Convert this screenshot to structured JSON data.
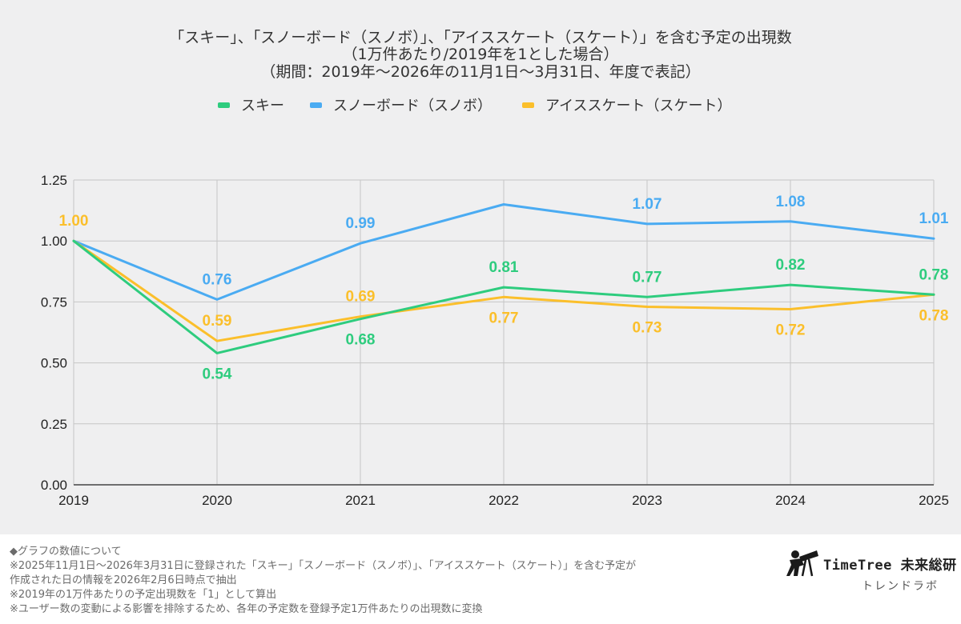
{
  "title": {
    "line1": "「スキー」、「スノーボード（スノボ）」、「アイススケート（スケート）」を含む予定の出現数",
    "line2": "（1万件あたり/2019年を1とした場合）",
    "line3": "（期間：2019年〜2026年の11月1日〜3月31日、年度で表記）"
  },
  "chart_data": {
    "type": "line",
    "categories": [
      "2019",
      "2020",
      "2021",
      "2022",
      "2023",
      "2024",
      "2025"
    ],
    "ylim": [
      0,
      1.25
    ],
    "yticks": [
      "0.00",
      "0.25",
      "0.50",
      "0.75",
      "1.00",
      "1.25"
    ],
    "grid": true,
    "legend_position": "top",
    "series": [
      {
        "name": "スキー",
        "color": "#2ecc7e",
        "values": [
          1.0,
          0.54,
          0.68,
          0.81,
          0.77,
          0.82,
          0.78
        ],
        "labels": [
          "",
          "0.54",
          "0.68",
          "0.81",
          "0.77",
          "0.82",
          "0.78"
        ],
        "label_pos": [
          "",
          "below",
          "below",
          "above",
          "above",
          "above",
          "above"
        ]
      },
      {
        "name": "スノーボード（スノボ）",
        "color": "#4aabf2",
        "values": [
          1.0,
          0.76,
          0.99,
          1.15,
          1.07,
          1.08,
          1.01
        ],
        "labels": [
          "",
          "0.76",
          "0.99",
          "",
          "1.07",
          "1.08",
          "1.01"
        ],
        "label_pos": [
          "",
          "above",
          "above",
          "",
          "above",
          "above",
          "above"
        ]
      },
      {
        "name": "アイススケート（スケート）",
        "color": "#fbbf2b",
        "values": [
          1.0,
          0.59,
          0.69,
          0.77,
          0.73,
          0.72,
          0.78
        ],
        "labels": [
          "1.00",
          "0.59",
          "0.69",
          "0.77",
          "0.73",
          "0.72",
          "0.78"
        ],
        "label_pos": [
          "above",
          "above",
          "above",
          "below",
          "below",
          "below",
          "below"
        ]
      }
    ]
  },
  "footer": {
    "notes": [
      "◆グラフの数値について",
      "※2025年11月1日〜2026年3月31日に登録された「スキー」「スノーボード（スノボ）」、「アイススケート（スケート）」を含む予定が",
      "作成された日の情報を2026年2月6日時点で抽出",
      "※2019年の1万件あたりの予定出現数を「1」として算出",
      "※ユーザー数の変動による影響を排除するため、各年の予定数を登録予定1万件あたりの出現数に変換"
    ]
  },
  "brand": {
    "name": "TimeTree 未来総研",
    "sub": "トレンドラボ",
    "icon": "telescope-person-icon"
  }
}
